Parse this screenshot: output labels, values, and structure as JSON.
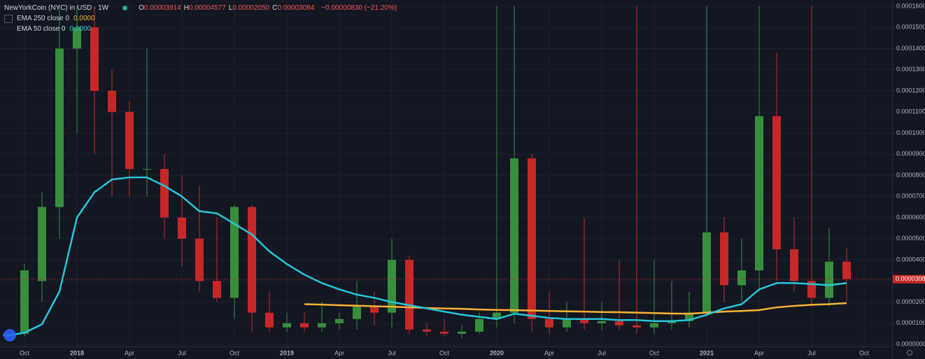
{
  "chart_data": {
    "type": "candlestick",
    "header": {
      "symbol": "NewYorkCoin (NYC) in USD · 1W",
      "ohlc": [
        {
          "prefix": "O",
          "value": "0.00003914"
        },
        {
          "prefix": "H",
          "value": "0.00004577"
        },
        {
          "prefix": "L",
          "value": "0.00002050"
        },
        {
          "prefix": "C",
          "value": "0.00003084"
        }
      ],
      "change": "−0.00000830 (−21.20%)"
    },
    "categories": [
      null,
      "Oct",
      null,
      null,
      "2018",
      null,
      null,
      "Apr",
      null,
      null,
      "Jul",
      null,
      null,
      "Oct",
      null,
      null,
      "2019",
      null,
      null,
      "Apr",
      null,
      null,
      "Jul",
      null,
      null,
      "Oct",
      null,
      null,
      "2020",
      null,
      null,
      "Apr",
      null,
      null,
      "Jul",
      null,
      null,
      "Oct",
      null,
      null,
      "2021",
      null,
      null,
      "Apr",
      null,
      null,
      "Jul",
      null,
      null,
      "Oct"
    ],
    "open": [
      4e-06,
      5e-06,
      3e-05,
      6.5e-05,
      0.00014,
      0.00015,
      0.00012,
      0.00011,
      8.3e-05,
      8.3e-05,
      6e-05,
      5e-05,
      3e-05,
      2.2e-05,
      6.5e-05,
      1.5e-05,
      8e-06,
      1e-05,
      8e-06,
      1e-05,
      1.2e-05,
      1.8e-05,
      1.5e-05,
      4e-05,
      7e-06,
      6e-06,
      5e-06,
      6e-06,
      1.2e-05,
      1.5e-05,
      8.8e-05,
      1.2e-05,
      8e-06,
      1.2e-05,
      1e-05,
      1.1e-05,
      9e-06,
      8e-06,
      1e-05,
      1.1e-05,
      1.5e-05,
      5.3e-05,
      2.8e-05,
      3.5e-05,
      0.000108,
      4.5e-05,
      3e-05,
      2.2e-05,
      3.914e-05,
      null
    ],
    "high": [
      6e-06,
      3.8e-05,
      7.2e-05,
      0.00016,
      0.00016,
      0.00016,
      0.00013,
      0.000115,
      0.00014,
      9e-05,
      8e-05,
      7.5e-05,
      6e-05,
      6.6e-05,
      6.6e-05,
      2.5e-05,
      1.5e-05,
      1.5e-05,
      2e-05,
      1.5e-05,
      3e-05,
      2.5e-05,
      5e-05,
      4.2e-05,
      1e-05,
      1.2e-05,
      9e-06,
      1.5e-05,
      0.00016,
      0.00016,
      9e-05,
      2.5e-05,
      2e-05,
      6e-05,
      2e-05,
      4e-05,
      0.00016,
      4e-05,
      3e-05,
      2.5e-05,
      0.00016,
      6e-05,
      5e-05,
      0.00016,
      0.000138,
      6e-05,
      0.00016,
      5.5e-05,
      4.577e-05,
      null
    ],
    "low": [
      3e-06,
      4e-06,
      2e-05,
      5e-05,
      0.0001,
      9e-05,
      7e-05,
      7e-05,
      7e-05,
      5e-05,
      3.7e-05,
      2.5e-05,
      2e-05,
      1.2e-05,
      6e-06,
      6e-06,
      6e-06,
      6e-06,
      6e-06,
      7e-06,
      7e-06,
      9e-06,
      8e-06,
      5e-06,
      4e-06,
      4e-06,
      3e-06,
      5e-06,
      8e-06,
      1e-05,
      6e-06,
      5e-06,
      6e-06,
      7e-06,
      7e-06,
      7e-06,
      5e-06,
      5e-06,
      7e-06,
      8e-06,
      1.3e-05,
      2e-05,
      2e-05,
      2.5e-05,
      3e-05,
      2.5e-05,
      1.8e-05,
      1.8e-05,
      2.05e-05,
      null
    ],
    "close": [
      5e-06,
      3.5e-05,
      6.5e-05,
      0.00014,
      0.00015,
      0.00012,
      0.00011,
      8.3e-05,
      8.3e-05,
      6e-05,
      5e-05,
      3e-05,
      2.2e-05,
      6.5e-05,
      1.5e-05,
      8e-06,
      1e-05,
      8e-06,
      1e-05,
      1.2e-05,
      1.8e-05,
      1.5e-05,
      4e-05,
      7e-06,
      6e-06,
      5e-06,
      6e-06,
      1.2e-05,
      1.5e-05,
      8.8e-05,
      1.2e-05,
      8e-06,
      1.2e-05,
      1e-05,
      1.1e-05,
      9e-06,
      8e-06,
      1e-05,
      1.1e-05,
      1.5e-05,
      5.3e-05,
      2.8e-05,
      3.5e-05,
      0.000108,
      4.5e-05,
      3e-05,
      2.2e-05,
      3.914e-05,
      3.084e-05,
      null
    ],
    "up_color": "#388e3c",
    "down_color": "#c62828",
    "series": [
      {
        "name": "EMA 250 close 0",
        "legend_value": "0.0000",
        "color": "#f9b233",
        "values": [
          null,
          null,
          null,
          null,
          null,
          null,
          null,
          null,
          null,
          null,
          null,
          null,
          null,
          null,
          null,
          null,
          null,
          1.9e-05,
          1.88e-05,
          1.85e-05,
          1.83e-05,
          1.8e-05,
          1.78e-05,
          1.75e-05,
          1.72e-05,
          1.7e-05,
          1.68e-05,
          1.65e-05,
          1.63e-05,
          1.62e-05,
          1.6e-05,
          1.58e-05,
          1.56e-05,
          1.55e-05,
          1.53e-05,
          1.52e-05,
          1.5e-05,
          1.48e-05,
          1.46e-05,
          1.45e-05,
          1.5e-05,
          1.55e-05,
          1.58e-05,
          1.62e-05,
          1.75e-05,
          1.82e-05,
          1.87e-05,
          1.9e-05,
          1.95e-05,
          null
        ]
      },
      {
        "name": "EMA 50 close 0",
        "legend_value": "0.0000",
        "color": "#26c6da",
        "values": [
          4e-06,
          5.5e-06,
          9.5e-06,
          2.5e-05,
          6e-05,
          7.2e-05,
          7.8e-05,
          7.9e-05,
          7.9e-05,
          7.5e-05,
          7e-05,
          6.3e-05,
          6.2e-05,
          5.7e-05,
          5.2e-05,
          4.4e-05,
          3.8e-05,
          3.3e-05,
          2.9e-05,
          2.6e-05,
          2.35e-05,
          2.2e-05,
          2e-05,
          1.85e-05,
          1.7e-05,
          1.55e-05,
          1.4e-05,
          1.3e-05,
          1.2e-05,
          1.45e-05,
          1.35e-05,
          1.25e-05,
          1.2e-05,
          1.2e-05,
          1.2e-05,
          1.15e-05,
          1.15e-05,
          1.1e-05,
          1.1e-05,
          1.15e-05,
          1.4e-05,
          1.7e-05,
          1.9e-05,
          2.6e-05,
          2.9e-05,
          2.9e-05,
          2.85e-05,
          2.8e-05,
          2.9e-05,
          null
        ]
      }
    ],
    "price_line": {
      "value": 3.084e-05,
      "label": "0.00003084"
    },
    "ylim": [
      0,
      0.00016
    ],
    "yticks": [
      {
        "value": 0,
        "label": "0.00000000"
      },
      {
        "value": 1e-05,
        "label": "0.00001000"
      },
      {
        "value": 2e-05,
        "label": "0.00002000"
      },
      {
        "value": 3e-05,
        "label": "0.00003000"
      },
      {
        "value": 4e-05,
        "label": "0.00004000"
      },
      {
        "value": 5e-05,
        "label": "0.00005000"
      },
      {
        "value": 6e-05,
        "label": "0.00006000"
      },
      {
        "value": 7e-05,
        "label": "0.00007000"
      },
      {
        "value": 8e-05,
        "label": "0.00008000"
      },
      {
        "value": 9e-05,
        "label": "0.00009000"
      },
      {
        "value": 0.0001,
        "label": "0.00010000"
      },
      {
        "value": 0.00011,
        "label": "0.00011000"
      },
      {
        "value": 0.00012,
        "label": "0.00012000"
      },
      {
        "value": 0.00013,
        "label": "0.00013000"
      },
      {
        "value": 0.00014,
        "label": "0.00014000"
      },
      {
        "value": 0.00015,
        "label": "0.00015000"
      },
      {
        "value": 0.00016,
        "label": "0.00016000"
      }
    ],
    "grid": true
  }
}
